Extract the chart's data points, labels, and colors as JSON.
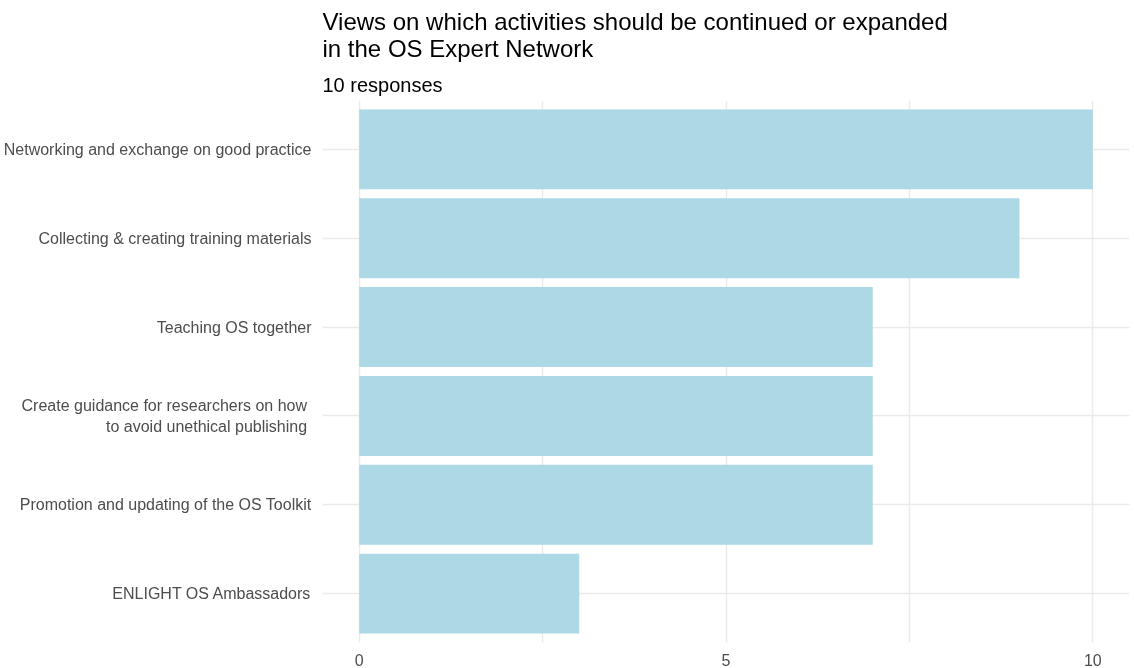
{
  "chart_data": {
    "type": "bar",
    "orientation": "horizontal",
    "title": "Views on which activities should be continued or expanded\n in the OS Expert Network",
    "subtitle": "10 responses",
    "categories": [
      "Networking and exchange on good practice",
      "Collecting & creating training materials",
      "Teaching OS together",
      "Create guidance for researchers on how \n to avoid unethical publishing",
      "Promotion and updating of the OS Toolkit",
      "ENLIGHT OS Ambassadors"
    ],
    "values": [
      10,
      9,
      7,
      7,
      7,
      3
    ],
    "color": "#add8e6",
    "xlim": [
      -0.5,
      10.5
    ],
    "xticks": [
      0,
      {
        "value": 2.5,
        "label": null
      },
      5,
      {
        "value": 7.5,
        "label": null
      },
      10
    ],
    "grid": true
  }
}
